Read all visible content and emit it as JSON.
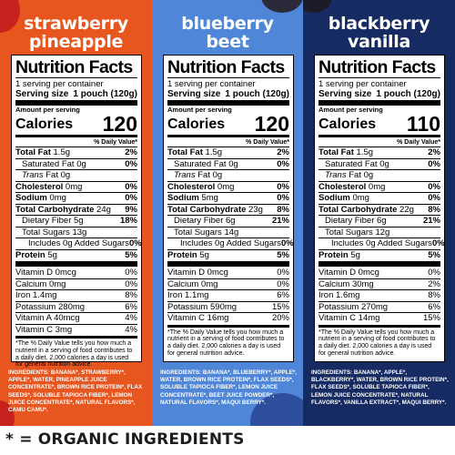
{
  "panels": [
    {
      "title_line1": "strawberry",
      "title_line2": "pineapple",
      "bg_color": "#e8561f",
      "label": {
        "title": "Nutrition Facts",
        "servings": "1 serving per container",
        "serving_size_label": "Serving size",
        "serving_size_value": "1 pouch (120g)",
        "amount_per_serving": "Amount per serving",
        "calories_label": "Calories",
        "calories_value": "120",
        "dv_header": "% Daily Value*",
        "rows": [
          {
            "name": "Total Fat",
            "amount": "1.5g",
            "dv": "2%",
            "style": "main"
          },
          {
            "name": "Saturated Fat",
            "amount": "0g",
            "dv": "0%",
            "style": "ind1"
          },
          {
            "name": "Trans",
            "amount": "Fat 0g",
            "dv": "",
            "style": "trans"
          },
          {
            "name": "Cholesterol",
            "amount": "0mg",
            "dv": "0%",
            "style": "main"
          },
          {
            "name": "Sodium",
            "amount": "0mg",
            "dv": "0%",
            "style": "main"
          },
          {
            "name": "Total Carbohydrate",
            "amount": "24g",
            "dv": "9%",
            "style": "main"
          },
          {
            "name": "Dietary Fiber",
            "amount": "5g",
            "dv": "18%",
            "style": "ind1"
          },
          {
            "name": "Total Sugars",
            "amount": "13g",
            "dv": "",
            "style": "ind1"
          },
          {
            "name": "Includes",
            "amount": "0g Added Sugars",
            "dv": "0%",
            "style": "ind2"
          },
          {
            "name": "Protein",
            "amount": "5g",
            "dv": "5%",
            "style": "main"
          }
        ],
        "vitamins": [
          {
            "name": "Vitamin D",
            "amount": "0mcg",
            "dv": "0%"
          },
          {
            "name": "Calcium",
            "amount": "0mg",
            "dv": "0%"
          },
          {
            "name": "Iron",
            "amount": "1.4mg",
            "dv": "8%"
          },
          {
            "name": "Potassium",
            "amount": "280mg",
            "dv": "6%"
          },
          {
            "name": "Vitamin A",
            "amount": "40mcg",
            "dv": "4%"
          },
          {
            "name": "Vitamin C",
            "amount": "3mg",
            "dv": "4%"
          }
        ],
        "footnote": "*The % Daily Value tells you how much a nutrient in a serving of food contributes to a daily diet. 2,000 calories a day is used for general nutrition advice."
      },
      "ingredients": "INGREDIENTS: BANANA*, STRAWBERRY*, APPLE*, WATER, PINEAPPLE JUICE CONCENTRATE*, BROWN RICE PROTEIN*, FLAX SEEDS*, SOLUBLE TAPIOCA FIBER*, LEMON JUICE CONCENTRATE*, NATURAL FLAVORS*, CAMU CAMU*."
    },
    {
      "title_line1": "blueberry",
      "title_line2": "beet",
      "bg_color": "#4f86d8",
      "label": {
        "title": "Nutrition Facts",
        "servings": "1 serving per container",
        "serving_size_label": "Serving size",
        "serving_size_value": "1 pouch (120g)",
        "amount_per_serving": "Amount per serving",
        "calories_label": "Calories",
        "calories_value": "120",
        "dv_header": "% Daily Value*",
        "rows": [
          {
            "name": "Total Fat",
            "amount": "1.5g",
            "dv": "2%",
            "style": "main"
          },
          {
            "name": "Saturated Fat",
            "amount": "0g",
            "dv": "0%",
            "style": "ind1"
          },
          {
            "name": "Trans",
            "amount": "Fat 0g",
            "dv": "",
            "style": "trans"
          },
          {
            "name": "Cholesterol",
            "amount": "0mg",
            "dv": "0%",
            "style": "main"
          },
          {
            "name": "Sodium",
            "amount": "5mg",
            "dv": "0%",
            "style": "main"
          },
          {
            "name": "Total Carbohydrate",
            "amount": "23g",
            "dv": "8%",
            "style": "main"
          },
          {
            "name": "Dietary Fiber",
            "amount": "6g",
            "dv": "21%",
            "style": "ind1"
          },
          {
            "name": "Total Sugars",
            "amount": "14g",
            "dv": "",
            "style": "ind1"
          },
          {
            "name": "Includes",
            "amount": "0g Added Sugars",
            "dv": "0%",
            "style": "ind2"
          },
          {
            "name": "Protein",
            "amount": "5g",
            "dv": "5%",
            "style": "main"
          }
        ],
        "vitamins": [
          {
            "name": "Vitamin D",
            "amount": "0mcg",
            "dv": "0%"
          },
          {
            "name": "Calcium",
            "amount": "0mg",
            "dv": "0%"
          },
          {
            "name": "Iron",
            "amount": "1.1mg",
            "dv": "6%"
          },
          {
            "name": "Potassium",
            "amount": "590mg",
            "dv": "15%"
          },
          {
            "name": "Vitamin C",
            "amount": "16mg",
            "dv": "20%"
          }
        ],
        "footnote": "*The % Daily Value tells you how much a nutrient in a serving of food contributes to a daily diet. 2,000 calories a day is used for general nutrition advice."
      },
      "ingredients": "INGREDIENTS: BANANA*, BLUEBERRY*, APPLE*, WATER, BROWN RICE PROTEIN*, FLAX SEEDS*, SOLUBLE TAPIOCA FIBER*, LEMON JUICE CONCENTRATE*, BEET JUICE POWDER*, NATURAL FLAVORS*, MAQUI BERRY*."
    },
    {
      "title_line1": "blackberry",
      "title_line2": "vanilla",
      "bg_color": "#172b63",
      "label": {
        "title": "Nutrition Facts",
        "servings": "1 serving per container",
        "serving_size_label": "Serving size",
        "serving_size_value": "1 pouch (120g)",
        "amount_per_serving": "Amount per serving",
        "calories_label": "Calories",
        "calories_value": "110",
        "dv_header": "% Daily Value*",
        "rows": [
          {
            "name": "Total Fat",
            "amount": "1.5g",
            "dv": "2%",
            "style": "main"
          },
          {
            "name": "Saturated Fat",
            "amount": "0g",
            "dv": "0%",
            "style": "ind1"
          },
          {
            "name": "Trans",
            "amount": "Fat 0g",
            "dv": "",
            "style": "trans"
          },
          {
            "name": "Cholesterol",
            "amount": "0mg",
            "dv": "0%",
            "style": "main"
          },
          {
            "name": "Sodium",
            "amount": "0mg",
            "dv": "0%",
            "style": "main"
          },
          {
            "name": "Total Carbohydrate",
            "amount": "22g",
            "dv": "8%",
            "style": "main"
          },
          {
            "name": "Dietary Fiber",
            "amount": "6g",
            "dv": "21%",
            "style": "ind1"
          },
          {
            "name": "Total Sugars",
            "amount": "12g",
            "dv": "",
            "style": "ind1"
          },
          {
            "name": "Includes",
            "amount": "0g Added Sugars",
            "dv": "0%",
            "style": "ind2"
          },
          {
            "name": "Protein",
            "amount": "5g",
            "dv": "5%",
            "style": "main"
          }
        ],
        "vitamins": [
          {
            "name": "Vitamin D",
            "amount": "0mcg",
            "dv": "0%"
          },
          {
            "name": "Calcium",
            "amount": "30mg",
            "dv": "2%"
          },
          {
            "name": "Iron",
            "amount": "1.6mg",
            "dv": "8%"
          },
          {
            "name": "Potassium",
            "amount": "270mg",
            "dv": "6%"
          },
          {
            "name": "Vitamin C",
            "amount": "14mg",
            "dv": "15%"
          }
        ],
        "footnote": "*The % Daily Value tells you how much a nutrient in a serving of food contributes to a daily diet. 2,000 calories a day is used for general nutrition advice."
      },
      "ingredients": "INGREDIENTS: BANANA*, APPLE*, BLACKBERRY*, WATER, BROWN RICE PROTEIN*, FLAX SEEDS*, SOLUBLE TAPIOCA FIBER*, LEMON JUICE CONCENTRATE*, NATURAL FLAVORS*, VANILLA EXTRACT*, MAQUI BERRY*."
    }
  ],
  "legend": {
    "star": "*",
    "text": "= ORGANIC INGREDIENTS"
  }
}
